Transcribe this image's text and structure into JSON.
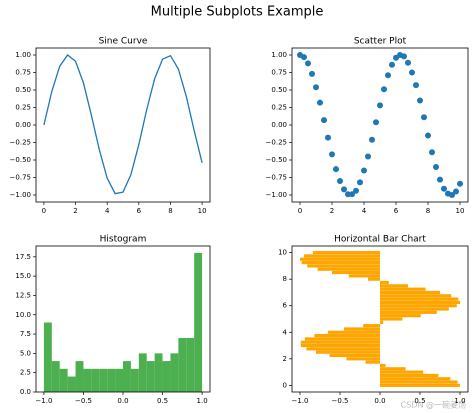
{
  "title": "Multiple Subplots Example",
  "watermark": "CSDN @一碗姜汤",
  "chart_data": [
    {
      "type": "line",
      "title": "Sine Curve",
      "color": "#1f77b4",
      "x": [
        0,
        0.5,
        1,
        1.5,
        2,
        2.5,
        3,
        3.5,
        4,
        4.5,
        5,
        5.5,
        6,
        6.5,
        7,
        7.5,
        8,
        8.5,
        9,
        9.5,
        10
      ],
      "values": [
        0,
        0.48,
        0.84,
        1.0,
        0.91,
        0.6,
        0.14,
        -0.35,
        -0.76,
        -0.98,
        -0.96,
        -0.71,
        -0.28,
        0.22,
        0.66,
        0.94,
        0.99,
        0.8,
        0.41,
        -0.08,
        -0.54
      ],
      "xlim": [
        -0.5,
        10.5
      ],
      "xticks": [
        0,
        2,
        4,
        6,
        8,
        10
      ],
      "ylim": [
        -1.1,
        1.1
      ],
      "yticks": [
        {
          "value": -1,
          "label": "−1.00"
        },
        {
          "value": -0.75,
          "label": "−0.75"
        },
        {
          "value": -0.5,
          "label": "−0.50"
        },
        {
          "value": -0.25,
          "label": "−0.25"
        },
        {
          "value": 0,
          "label": "0.00"
        },
        {
          "value": 0.25,
          "label": "0.25"
        },
        {
          "value": 0.5,
          "label": "0.50"
        },
        {
          "value": 0.75,
          "label": "0.75"
        },
        {
          "value": 1,
          "label": "1.00"
        }
      ]
    },
    {
      "type": "scatter",
      "title": "Scatter Plot",
      "color": "#1f77b4",
      "x": [
        0,
        0.25,
        0.5,
        0.75,
        1,
        1.25,
        1.5,
        1.75,
        2,
        2.25,
        2.5,
        2.75,
        3,
        3.25,
        3.5,
        3.75,
        4,
        4.25,
        4.5,
        4.75,
        5,
        5.25,
        5.5,
        5.75,
        6,
        6.25,
        6.5,
        6.75,
        7,
        7.25,
        7.5,
        7.75,
        8,
        8.25,
        8.5,
        8.75,
        9,
        9.25,
        9.5,
        9.75,
        10
      ],
      "values": [
        1,
        0.97,
        0.88,
        0.73,
        0.54,
        0.32,
        0.07,
        -0.18,
        -0.42,
        -0.63,
        -0.8,
        -0.92,
        -0.99,
        -0.99,
        -0.94,
        -0.82,
        -0.65,
        -0.45,
        -0.21,
        0.04,
        0.28,
        0.51,
        0.71,
        0.86,
        0.96,
        1.0,
        0.98,
        0.89,
        0.75,
        0.57,
        0.35,
        0.11,
        -0.15,
        -0.39,
        -0.6,
        -0.78,
        -0.91,
        -0.98,
        -1.0,
        -0.95,
        -0.84
      ],
      "xlim": [
        -0.5,
        10.5
      ],
      "xticks": [
        0,
        2,
        4,
        6,
        8,
        10
      ],
      "ylim": [
        -1.1,
        1.1
      ],
      "yticks": [
        {
          "value": -1,
          "label": "−1.00"
        },
        {
          "value": -0.75,
          "label": "−0.75"
        },
        {
          "value": -0.5,
          "label": "−0.50"
        },
        {
          "value": -0.25,
          "label": "−0.25"
        },
        {
          "value": 0,
          "label": "0.00"
        },
        {
          "value": 0.25,
          "label": "0.25"
        },
        {
          "value": 0.5,
          "label": "0.50"
        },
        {
          "value": 0.75,
          "label": "0.75"
        },
        {
          "value": 1,
          "label": "1.00"
        }
      ]
    },
    {
      "type": "histogram",
      "title": "Histogram",
      "color": "#4caf50",
      "bins": [
        -1.0,
        -0.9,
        -0.8,
        -0.7,
        -0.6,
        -0.5,
        -0.4,
        -0.3,
        -0.2,
        -0.1,
        0,
        0.1,
        0.2,
        0.3,
        0.4,
        0.5,
        0.6,
        0.7,
        0.8,
        0.9,
        1.0
      ],
      "values": [
        9,
        4,
        3,
        2,
        4,
        3,
        3,
        3,
        3,
        3,
        4,
        3,
        5,
        4,
        5,
        4,
        5,
        7,
        7,
        18
      ],
      "xlim": [
        -1.1,
        1.1
      ],
      "xticks": [
        {
          "value": -1,
          "label": "−1.0"
        },
        {
          "value": -0.5,
          "label": "−0.5"
        },
        {
          "value": 0,
          "label": "0.0"
        },
        {
          "value": 0.5,
          "label": "0.5"
        },
        {
          "value": 1,
          "label": "1.0"
        }
      ],
      "ylim": [
        0,
        18.9
      ],
      "yticks": [
        {
          "value": 0,
          "label": "0.0"
        },
        2.5,
        {
          "value": 5,
          "label": "5.0"
        },
        7.5,
        {
          "value": 10,
          "label": "10.0"
        },
        12.5,
        {
          "value": 15,
          "label": "15.0"
        },
        17.5
      ]
    },
    {
      "type": "barh",
      "title": "Horizontal Bar Chart",
      "color": "#ffa500",
      "y": [
        0,
        0.25,
        0.5,
        0.75,
        1,
        1.25,
        1.5,
        1.75,
        2,
        2.25,
        2.5,
        2.75,
        3,
        3.25,
        3.5,
        3.75,
        4,
        4.25,
        4.5,
        4.75,
        5,
        5.25,
        5.5,
        5.75,
        6,
        6.25,
        6.5,
        6.75,
        7,
        7.25,
        7.5,
        7.75,
        8,
        8.25,
        8.5,
        8.75,
        9,
        9.25,
        9.5,
        9.75,
        10
      ],
      "values": [
        1,
        0.97,
        0.88,
        0.73,
        0.54,
        0.32,
        0.07,
        -0.18,
        -0.42,
        -0.63,
        -0.8,
        -0.92,
        -0.99,
        -0.99,
        -0.94,
        -0.82,
        -0.65,
        -0.45,
        -0.21,
        0.04,
        0.28,
        0.51,
        0.71,
        0.86,
        0.96,
        1.0,
        0.98,
        0.89,
        0.75,
        0.57,
        0.35,
        0.11,
        -0.15,
        -0.39,
        -0.6,
        -0.78,
        -0.91,
        -0.98,
        -1.0,
        -0.95,
        -0.84
      ],
      "xlim": [
        -1.1,
        1.1
      ],
      "xticks": [
        {
          "value": -1,
          "label": "−1.0"
        },
        {
          "value": -0.5,
          "label": "−0.5"
        },
        {
          "value": 0,
          "label": "0.0"
        },
        {
          "value": 0.5,
          "label": "0.5"
        },
        {
          "value": 1,
          "label": "1.0"
        }
      ],
      "ylim": [
        -0.5,
        10.5
      ],
      "yticks": [
        0,
        2,
        4,
        6,
        8,
        10
      ]
    }
  ]
}
